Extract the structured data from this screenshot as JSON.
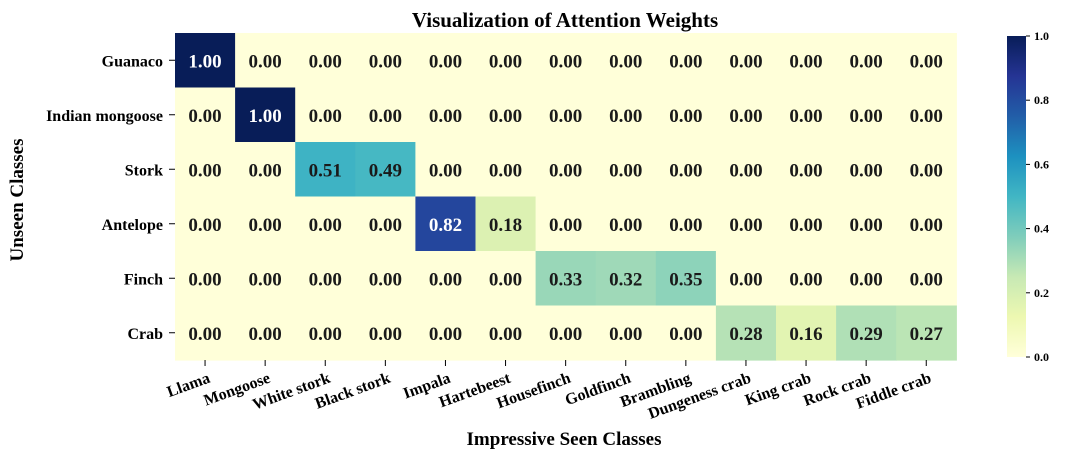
{
  "chart_data": {
    "type": "heatmap",
    "title": "Visualization of Attention Weights",
    "xlabel": "Impressive Seen Classes",
    "ylabel": "Unseen Classes",
    "x_categories": [
      "Llama",
      "Mongoose",
      "White stork",
      "Black stork",
      "Impala",
      "Hartebeest",
      "Housefinch",
      "Goldfinch",
      "Brambling",
      "Dungeness crab",
      "King crab",
      "Rock crab",
      "Fiddle crab"
    ],
    "y_categories": [
      "Guanaco",
      "Indian mongoose",
      "Stork",
      "Antelope",
      "Finch",
      "Crab"
    ],
    "values": [
      [
        1.0,
        0.0,
        0.0,
        0.0,
        0.0,
        0.0,
        0.0,
        0.0,
        0.0,
        0.0,
        0.0,
        0.0,
        0.0
      ],
      [
        0.0,
        1.0,
        0.0,
        0.0,
        0.0,
        0.0,
        0.0,
        0.0,
        0.0,
        0.0,
        0.0,
        0.0,
        0.0
      ],
      [
        0.0,
        0.0,
        0.51,
        0.49,
        0.0,
        0.0,
        0.0,
        0.0,
        0.0,
        0.0,
        0.0,
        0.0,
        0.0
      ],
      [
        0.0,
        0.0,
        0.0,
        0.0,
        0.82,
        0.18,
        0.0,
        0.0,
        0.0,
        0.0,
        0.0,
        0.0,
        0.0
      ],
      [
        0.0,
        0.0,
        0.0,
        0.0,
        0.0,
        0.0,
        0.33,
        0.32,
        0.35,
        0.0,
        0.0,
        0.0,
        0.0
      ],
      [
        0.0,
        0.0,
        0.0,
        0.0,
        0.0,
        0.0,
        0.0,
        0.0,
        0.0,
        0.28,
        0.16,
        0.29,
        0.27
      ]
    ],
    "value_labels_shown": true,
    "colormap": "YlGnBu",
    "colorbar": {
      "range": [
        0.0,
        1.0
      ],
      "ticks": [
        "0.0",
        "0.2",
        "0.4",
        "0.6",
        "0.8",
        "1.0"
      ]
    }
  },
  "colors": {
    "cmap_stops": [
      "#ffffd9",
      "#edf8b1",
      "#c7e9b4",
      "#7fcdbb",
      "#41b6c4",
      "#1d91c0",
      "#225ea8",
      "#253494",
      "#081d58"
    ]
  }
}
